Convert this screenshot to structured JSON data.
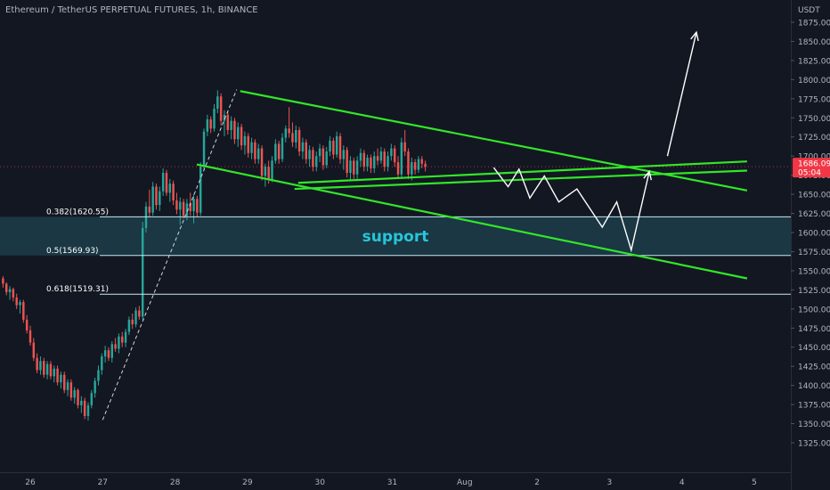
{
  "header": {
    "title": "Ethereum / TetherUS PERPETUAL FUTURES, 1h, BINANCE"
  },
  "axis": {
    "currency": "USDT"
  },
  "chart_data": {
    "type": "candlestick",
    "title": "Ethereum / TetherUS PERPETUAL FUTURES, 1h, BINANCE",
    "ylabel": "USDT",
    "ylim": [
      1325,
      1875
    ],
    "y_ticks": [
      "1325.00",
      "1350.00",
      "1375.00",
      "1400.00",
      "1425.00",
      "1450.00",
      "1475.00",
      "1500.00",
      "1525.00",
      "1550.00",
      "1575.00",
      "1600.00",
      "1625.00",
      "1650.00",
      "1675.00",
      "1700.00",
      "1725.00",
      "1750.00",
      "1775.00",
      "1800.00",
      "1825.00",
      "1850.00",
      "1875.00"
    ],
    "x_ticks": [
      "26",
      "27",
      "28",
      "29",
      "30",
      "31",
      "Aug",
      "2",
      "3",
      "4",
      "5"
    ],
    "x_range": [
      -0.4,
      9.9
    ],
    "current_price": {
      "label": "1686.09",
      "countdown": "05:04",
      "value": 1686.09
    },
    "fib_levels": [
      {
        "label": "0.382(1620.55)",
        "value": 1620.55
      },
      {
        "label": "0.5(1569.93)",
        "value": 1569.93
      },
      {
        "label": "0.618(1519.31)",
        "value": 1519.31
      }
    ],
    "support_zone": {
      "label": "support",
      "low": 1569.93,
      "high": 1620.55
    },
    "colors": {
      "up": "#26a69a",
      "down": "#ef5350",
      "trend": "#32e629",
      "fib": "#c7e8f2",
      "zone": "#1f4d5a",
      "support_text": "#26c6da",
      "price": "#f23645"
    },
    "trendlines": [
      {
        "name": "upper-channel",
        "points": [
          [
            2.9,
            1785
          ],
          [
            9.9,
            1655
          ]
        ]
      },
      {
        "name": "lower-channel",
        "points": [
          [
            2.3,
            1689
          ],
          [
            9.9,
            1540
          ]
        ]
      },
      {
        "name": "wedge-lower",
        "points": [
          [
            3.65,
            1657
          ],
          [
            9.9,
            1681
          ]
        ]
      },
      {
        "name": "wedge-upper",
        "points": [
          [
            3.7,
            1665
          ],
          [
            9.9,
            1693
          ]
        ]
      }
    ],
    "projection": [
      [
        6.4,
        1685
      ],
      [
        6.6,
        1660
      ],
      [
        6.75,
        1683
      ],
      [
        6.9,
        1645
      ],
      [
        7.1,
        1674
      ],
      [
        7.3,
        1640
      ],
      [
        7.55,
        1657
      ],
      [
        7.9,
        1607
      ],
      [
        8.1,
        1640
      ],
      [
        8.3,
        1577
      ],
      [
        8.55,
        1680
      ]
    ],
    "breakout_arrow": [
      [
        8.8,
        1700
      ],
      [
        9.2,
        1862
      ]
    ],
    "impulse_dashed": [
      [
        1.0,
        1355
      ],
      [
        2.85,
        1787
      ]
    ],
    "candles": [
      [
        1540,
        1543,
        1528,
        1533
      ],
      [
        1533,
        1535,
        1518,
        1522
      ],
      [
        1522,
        1530,
        1512,
        1526
      ],
      [
        1526,
        1528,
        1510,
        1515
      ],
      [
        1515,
        1520,
        1500,
        1505
      ],
      [
        1505,
        1512,
        1494,
        1509
      ],
      [
        1509,
        1512,
        1482,
        1486
      ],
      [
        1486,
        1492,
        1468,
        1472
      ],
      [
        1472,
        1478,
        1452,
        1456
      ],
      [
        1456,
        1462,
        1432,
        1436
      ],
      [
        1436,
        1442,
        1416,
        1420
      ],
      [
        1420,
        1438,
        1414,
        1432
      ],
      [
        1432,
        1436,
        1410,
        1414
      ],
      [
        1414,
        1432,
        1408,
        1428
      ],
      [
        1428,
        1432,
        1408,
        1412
      ],
      [
        1412,
        1426,
        1404,
        1422
      ],
      [
        1422,
        1426,
        1400,
        1404
      ],
      [
        1404,
        1418,
        1396,
        1414
      ],
      [
        1414,
        1418,
        1390,
        1394
      ],
      [
        1394,
        1408,
        1386,
        1404
      ],
      [
        1404,
        1408,
        1380,
        1384
      ],
      [
        1384,
        1398,
        1376,
        1394
      ],
      [
        1394,
        1396,
        1370,
        1374
      ],
      [
        1374,
        1386,
        1364,
        1380
      ],
      [
        1380,
        1384,
        1356,
        1360
      ],
      [
        1360,
        1378,
        1354,
        1374
      ],
      [
        1374,
        1394,
        1370,
        1390
      ],
      [
        1390,
        1410,
        1384,
        1406
      ],
      [
        1406,
        1426,
        1400,
        1420
      ],
      [
        1420,
        1442,
        1414,
        1438
      ],
      [
        1438,
        1452,
        1430,
        1446
      ],
      [
        1446,
        1450,
        1432,
        1436
      ],
      [
        1436,
        1458,
        1430,
        1454
      ],
      [
        1454,
        1462,
        1444,
        1448
      ],
      [
        1448,
        1468,
        1442,
        1464
      ],
      [
        1464,
        1470,
        1450,
        1456
      ],
      [
        1456,
        1474,
        1450,
        1470
      ],
      [
        1470,
        1490,
        1466,
        1486
      ],
      [
        1486,
        1494,
        1474,
        1480
      ],
      [
        1480,
        1502,
        1476,
        1498
      ],
      [
        1498,
        1504,
        1486,
        1490
      ],
      [
        1490,
        1614,
        1486,
        1606
      ],
      [
        1606,
        1640,
        1600,
        1634
      ],
      [
        1634,
        1656,
        1620,
        1626
      ],
      [
        1626,
        1666,
        1622,
        1660
      ],
      [
        1660,
        1664,
        1630,
        1636
      ],
      [
        1636,
        1660,
        1628,
        1654
      ],
      [
        1654,
        1684,
        1648,
        1678
      ],
      [
        1678,
        1682,
        1648,
        1652
      ],
      [
        1652,
        1670,
        1640,
        1664
      ],
      [
        1664,
        1668,
        1636,
        1642
      ],
      [
        1642,
        1652,
        1624,
        1630
      ],
      [
        1630,
        1646,
        1610,
        1640
      ],
      [
        1640,
        1644,
        1618,
        1622
      ],
      [
        1622,
        1644,
        1616,
        1638
      ],
      [
        1638,
        1652,
        1622,
        1628
      ],
      [
        1628,
        1650,
        1612,
        1644
      ],
      [
        1644,
        1648,
        1620,
        1626
      ],
      [
        1626,
        1692,
        1622,
        1686
      ],
      [
        1686,
        1736,
        1682,
        1732
      ],
      [
        1732,
        1754,
        1726,
        1748
      ],
      [
        1748,
        1752,
        1730,
        1736
      ],
      [
        1736,
        1768,
        1732,
        1762
      ],
      [
        1762,
        1786,
        1756,
        1778
      ],
      [
        1778,
        1782,
        1740,
        1746
      ],
      [
        1746,
        1760,
        1726,
        1754
      ],
      [
        1754,
        1758,
        1728,
        1734
      ],
      [
        1734,
        1752,
        1722,
        1746
      ],
      [
        1746,
        1750,
        1716,
        1722
      ],
      [
        1722,
        1744,
        1712,
        1738
      ],
      [
        1738,
        1742,
        1708,
        1714
      ],
      [
        1714,
        1732,
        1702,
        1726
      ],
      [
        1726,
        1730,
        1698,
        1704
      ],
      [
        1704,
        1724,
        1696,
        1718
      ],
      [
        1718,
        1722,
        1690,
        1696
      ],
      [
        1696,
        1716,
        1690,
        1710
      ],
      [
        1710,
        1714,
        1668,
        1674
      ],
      [
        1674,
        1690,
        1660,
        1686
      ],
      [
        1686,
        1694,
        1664,
        1670
      ],
      [
        1670,
        1700,
        1666,
        1694
      ],
      [
        1694,
        1722,
        1690,
        1716
      ],
      [
        1716,
        1720,
        1690,
        1696
      ],
      [
        1696,
        1730,
        1692,
        1724
      ],
      [
        1724,
        1740,
        1718,
        1736
      ],
      [
        1736,
        1764,
        1724,
        1730
      ],
      [
        1730,
        1744,
        1712,
        1718
      ],
      [
        1718,
        1740,
        1710,
        1734
      ],
      [
        1734,
        1738,
        1700,
        1706
      ],
      [
        1706,
        1724,
        1696,
        1718
      ],
      [
        1718,
        1722,
        1690,
        1696
      ],
      [
        1696,
        1714,
        1686,
        1708
      ],
      [
        1708,
        1712,
        1680,
        1686
      ],
      [
        1686,
        1706,
        1680,
        1700
      ],
      [
        1700,
        1716,
        1692,
        1710
      ],
      [
        1710,
        1714,
        1682,
        1688
      ],
      [
        1688,
        1712,
        1684,
        1706
      ],
      [
        1706,
        1726,
        1700,
        1720
      ],
      [
        1720,
        1724,
        1696,
        1702
      ],
      [
        1702,
        1732,
        1698,
        1726
      ],
      [
        1726,
        1730,
        1690,
        1696
      ],
      [
        1696,
        1714,
        1682,
        1708
      ],
      [
        1708,
        1712,
        1672,
        1678
      ],
      [
        1678,
        1700,
        1668,
        1694
      ],
      [
        1694,
        1698,
        1670,
        1676
      ],
      [
        1676,
        1700,
        1670,
        1694
      ],
      [
        1694,
        1710,
        1686,
        1704
      ],
      [
        1704,
        1708,
        1680,
        1686
      ],
      [
        1686,
        1702,
        1680,
        1698
      ],
      [
        1698,
        1702,
        1678,
        1684
      ],
      [
        1684,
        1706,
        1678,
        1700
      ],
      [
        1700,
        1710,
        1688,
        1694
      ],
      [
        1694,
        1712,
        1690,
        1706
      ],
      [
        1706,
        1710,
        1680,
        1686
      ],
      [
        1686,
        1706,
        1680,
        1700
      ],
      [
        1700,
        1716,
        1694,
        1710
      ],
      [
        1710,
        1714,
        1686,
        1692
      ],
      [
        1692,
        1700,
        1670,
        1676
      ],
      [
        1676,
        1724,
        1672,
        1718
      ],
      [
        1718,
        1734,
        1700,
        1706
      ],
      [
        1706,
        1710,
        1670,
        1676
      ],
      [
        1676,
        1698,
        1668,
        1692
      ],
      [
        1692,
        1696,
        1676,
        1682
      ],
      [
        1682,
        1700,
        1678,
        1696
      ],
      [
        1696,
        1700,
        1684,
        1690
      ],
      [
        1690,
        1694,
        1680,
        1686
      ]
    ]
  }
}
